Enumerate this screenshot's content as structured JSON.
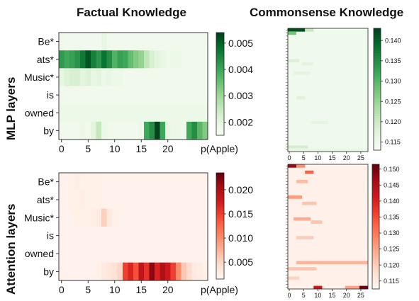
{
  "figure": {
    "col_titles": [
      "Factual Knowledge",
      "Commonsense Knowledge"
    ],
    "row_titles": [
      "MLP layers",
      "Attention layers"
    ]
  },
  "chart_data": [
    {
      "type": "heatmap",
      "panel": "factual-mlp",
      "color_scale": "greens",
      "y_categories": [
        "Be*",
        "ats*",
        "Music*",
        "is",
        "owned",
        "by"
      ],
      "x_ticks": [
        0,
        5,
        10,
        15,
        20
      ],
      "xlim": [
        0,
        27
      ],
      "colorbar_label": "p(Apple)",
      "colorbar_ticks": [
        0.002,
        0.003,
        0.004,
        0.005
      ],
      "colorbar_tick_labels": [
        "0.002",
        "0.003",
        "0.004",
        "0.005"
      ],
      "vlim": [
        0.0015,
        0.0054
      ],
      "values": [
        [
          0.0017,
          0.0017,
          0.0017,
          0.0017,
          0.0017,
          0.0017,
          0.0017,
          0.0017,
          0.0019,
          0.0017,
          0.0017,
          0.0017,
          0.0017,
          0.0017,
          0.0017,
          0.0017,
          0.0017,
          0.0017,
          0.0017,
          0.0017,
          0.0017,
          0.0017,
          0.0017,
          0.0017,
          0.0017,
          0.0017,
          0.0017,
          0.0017
        ],
        [
          0.0042,
          0.004,
          0.0041,
          0.0043,
          0.0047,
          0.0052,
          0.0046,
          0.0043,
          0.0048,
          0.0044,
          0.0038,
          0.0041,
          0.004,
          0.0036,
          0.0033,
          0.0031,
          0.0026,
          0.0022,
          0.002,
          0.0019,
          0.0018,
          0.0018,
          0.0018,
          0.0017,
          0.0017,
          0.0017,
          0.0017,
          0.0017
        ],
        [
          0.0019,
          0.0021,
          0.0022,
          0.0022,
          0.002,
          0.0021,
          0.0019,
          0.002,
          0.0018,
          0.0019,
          0.0018,
          0.0018,
          0.0017,
          0.0017,
          0.0017,
          0.0017,
          0.0017,
          0.0017,
          0.0017,
          0.0017,
          0.0017,
          0.0017,
          0.0017,
          0.0017,
          0.0017,
          0.0017,
          0.0017,
          0.0017
        ],
        [
          0.0017,
          0.0017,
          0.0017,
          0.0017,
          0.0017,
          0.0017,
          0.0017,
          0.0017,
          0.0017,
          0.0017,
          0.0017,
          0.0017,
          0.0017,
          0.0017,
          0.0017,
          0.0017,
          0.0017,
          0.0017,
          0.0017,
          0.0017,
          0.0017,
          0.0017,
          0.0017,
          0.0017,
          0.0017,
          0.0017,
          0.0017,
          0.0017
        ],
        [
          0.0018,
          0.0018,
          0.0018,
          0.0018,
          0.0018,
          0.0018,
          0.0018,
          0.0018,
          0.0018,
          0.0018,
          0.0018,
          0.0018,
          0.0018,
          0.0018,
          0.0018,
          0.0018,
          0.0018,
          0.0018,
          0.0018,
          0.0018,
          0.0018,
          0.0018,
          0.0018,
          0.0018,
          0.0018,
          0.0018,
          0.0018,
          0.0018
        ],
        [
          0.0017,
          0.0017,
          0.0017,
          0.0017,
          0.0018,
          0.0017,
          0.002,
          0.0025,
          0.0018,
          0.0017,
          0.0017,
          0.0017,
          0.0017,
          0.0017,
          0.0017,
          0.0018,
          0.004,
          0.0044,
          0.0054,
          0.004,
          0.0019,
          0.0018,
          0.0018,
          0.0018,
          0.004,
          0.0044,
          0.0037,
          0.0033
        ]
      ]
    },
    {
      "type": "heatmap",
      "panel": "factual-attention",
      "color_scale": "reds",
      "y_categories": [
        "Be*",
        "ats*",
        "Music*",
        "is",
        "owned",
        "by"
      ],
      "x_ticks": [
        0,
        5,
        10,
        15,
        20
      ],
      "xlim": [
        0,
        27
      ],
      "colorbar_label": "p(Apple)",
      "colorbar_ticks": [
        0.005,
        0.01,
        0.015,
        0.02
      ],
      "colorbar_tick_labels": [
        "0.005",
        "0.010",
        "0.015",
        "0.020"
      ],
      "vlim": [
        0.0015,
        0.0235
      ],
      "values": [
        [
          0.002,
          0.002,
          0.0022,
          0.0024,
          0.0022,
          0.0022,
          0.0022,
          0.0022,
          0.002,
          0.002,
          0.002,
          0.002,
          0.002,
          0.002,
          0.002,
          0.002,
          0.002,
          0.002,
          0.002,
          0.002,
          0.002,
          0.002,
          0.002,
          0.002,
          0.002,
          0.002,
          0.002,
          0.002
        ],
        [
          0.002,
          0.002,
          0.0022,
          0.0022,
          0.0024,
          0.0022,
          0.0022,
          0.0022,
          0.002,
          0.002,
          0.002,
          0.002,
          0.002,
          0.002,
          0.002,
          0.002,
          0.002,
          0.002,
          0.002,
          0.002,
          0.002,
          0.002,
          0.002,
          0.002,
          0.002,
          0.002,
          0.002,
          0.002
        ],
        [
          0.002,
          0.002,
          0.002,
          0.0022,
          0.0022,
          0.0022,
          0.0024,
          0.0028,
          0.0055,
          0.003,
          0.0022,
          0.002,
          0.002,
          0.002,
          0.002,
          0.002,
          0.002,
          0.002,
          0.002,
          0.002,
          0.002,
          0.002,
          0.002,
          0.002,
          0.002,
          0.002,
          0.002,
          0.002
        ],
        [
          0.002,
          0.002,
          0.002,
          0.002,
          0.002,
          0.002,
          0.002,
          0.002,
          0.002,
          0.002,
          0.002,
          0.002,
          0.002,
          0.002,
          0.002,
          0.002,
          0.002,
          0.002,
          0.002,
          0.002,
          0.002,
          0.002,
          0.002,
          0.002,
          0.002,
          0.002,
          0.002,
          0.002
        ],
        [
          0.002,
          0.002,
          0.002,
          0.002,
          0.002,
          0.002,
          0.002,
          0.002,
          0.002,
          0.002,
          0.002,
          0.002,
          0.002,
          0.002,
          0.002,
          0.002,
          0.002,
          0.002,
          0.002,
          0.002,
          0.002,
          0.002,
          0.002,
          0.002,
          0.002,
          0.002,
          0.002,
          0.002
        ],
        [
          0.002,
          0.002,
          0.002,
          0.002,
          0.002,
          0.002,
          0.002,
          0.0022,
          0.003,
          0.0035,
          0.004,
          0.005,
          0.015,
          0.017,
          0.014,
          0.019,
          0.016,
          0.022,
          0.017,
          0.02,
          0.018,
          0.015,
          0.01,
          0.006,
          0.0045,
          0.003,
          0.0025,
          0.0022
        ]
      ]
    },
    {
      "type": "heatmap",
      "panel": "commonsense-mlp",
      "color_scale": "greens",
      "rows": 40,
      "x_ticks": [
        0,
        5,
        10,
        15,
        20,
        25
      ],
      "xlim": [
        0,
        28
      ],
      "colorbar_ticks": [
        0.115,
        0.12,
        0.125,
        0.13,
        0.135,
        0.14
      ],
      "colorbar_tick_labels": [
        "0.115",
        "0.120",
        "0.125",
        "0.130",
        "0.135",
        "0.140"
      ],
      "vlim": [
        0.113,
        0.143
      ],
      "base_value": 0.1145,
      "spots": [
        {
          "row": 0,
          "col_start": 0,
          "col_end": 6,
          "value": 0.142
        },
        {
          "row": 1,
          "col_start": 0,
          "col_end": 3,
          "value": 0.128
        },
        {
          "row": 0,
          "col_start": 6,
          "col_end": 9,
          "value": 0.121
        },
        {
          "row": 10,
          "col_start": 0,
          "col_end": 4,
          "value": 0.118
        },
        {
          "row": 11,
          "col_start": 5,
          "col_end": 9,
          "value": 0.117
        },
        {
          "row": 14,
          "col_start": 2,
          "col_end": 8,
          "value": 0.1165
        },
        {
          "row": 22,
          "col_start": 3,
          "col_end": 6,
          "value": 0.1175
        },
        {
          "row": 30,
          "col_start": 8,
          "col_end": 14,
          "value": 0.1165
        },
        {
          "row": 38,
          "col_start": 0,
          "col_end": 7,
          "value": 0.1185
        },
        {
          "row": 39,
          "col_start": 0,
          "col_end": 28,
          "value": 0.116
        }
      ]
    },
    {
      "type": "heatmap",
      "panel": "commonsense-attention",
      "color_scale": "reds",
      "rows": 40,
      "x_ticks": [
        0,
        5,
        10,
        15,
        20,
        25
      ],
      "xlim": [
        0,
        28
      ],
      "colorbar_ticks": [
        0.115,
        0.12,
        0.125,
        0.13,
        0.135,
        0.14,
        0.145,
        0.15
      ],
      "colorbar_tick_labels": [
        "0.115",
        "0.120",
        "0.125",
        "0.130",
        "0.135",
        "0.140",
        "0.145",
        "0.150"
      ],
      "vlim": [
        0.1125,
        0.1515
      ],
      "base_value": 0.1135,
      "spots": [
        {
          "row": 0,
          "col_start": 0,
          "col_end": 3,
          "value": 0.148
        },
        {
          "row": 0,
          "col_start": 3,
          "col_end": 6,
          "value": 0.128
        },
        {
          "row": 2,
          "col_start": 6,
          "col_end": 9,
          "value": 0.133
        },
        {
          "row": 5,
          "col_start": 3,
          "col_end": 7,
          "value": 0.122
        },
        {
          "row": 10,
          "col_start": 0,
          "col_end": 5,
          "value": 0.126
        },
        {
          "row": 12,
          "col_start": 5,
          "col_end": 10,
          "value": 0.121
        },
        {
          "row": 17,
          "col_start": 2,
          "col_end": 8,
          "value": 0.124
        },
        {
          "row": 18,
          "col_start": 8,
          "col_end": 12,
          "value": 0.121
        },
        {
          "row": 23,
          "col_start": 3,
          "col_end": 9,
          "value": 0.12
        },
        {
          "row": 31,
          "col_start": 3,
          "col_end": 28,
          "value": 0.123
        },
        {
          "row": 33,
          "col_start": 0,
          "col_end": 10,
          "value": 0.121
        },
        {
          "row": 36,
          "col_start": 0,
          "col_end": 4,
          "value": 0.119
        },
        {
          "row": 39,
          "col_start": 9,
          "col_end": 12,
          "value": 0.142
        },
        {
          "row": 39,
          "col_start": 25,
          "col_end": 28,
          "value": 0.151
        },
        {
          "row": 39,
          "col_start": 20,
          "col_end": 25,
          "value": 0.125
        }
      ]
    }
  ]
}
